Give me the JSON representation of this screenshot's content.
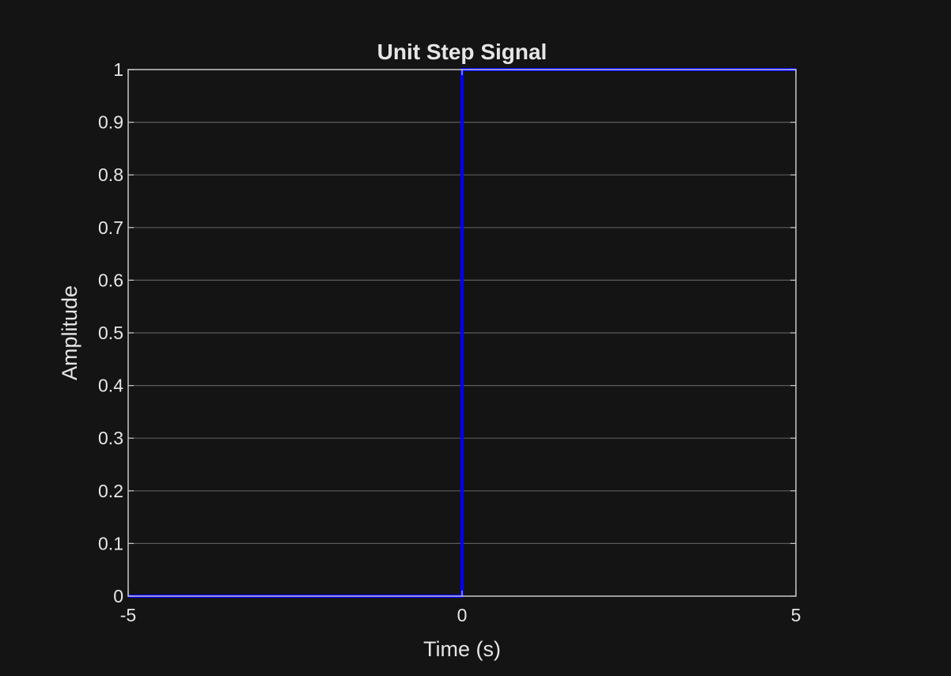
{
  "chart_data": {
    "type": "line",
    "title": "Unit Step Signal",
    "xlabel": "Time (s)",
    "ylabel": "Amplitude",
    "xlim": [
      -5,
      5
    ],
    "ylim": [
      0,
      1
    ],
    "xticks": [
      -5,
      0,
      5
    ],
    "xtick_labels": [
      "-5",
      "0",
      "5"
    ],
    "yticks": [
      0,
      0.1,
      0.2,
      0.3,
      0.4,
      0.5,
      0.6,
      0.7,
      0.8,
      0.9,
      1
    ],
    "ytick_labels": [
      "0",
      "0.1",
      "0.2",
      "0.3",
      "0.4",
      "0.5",
      "0.6",
      "0.7",
      "0.8",
      "0.9",
      "1"
    ],
    "grid": "y-only",
    "legend": "none",
    "series": [
      {
        "x": [
          -5,
          0,
          0,
          5
        ],
        "y": [
          0,
          0,
          1,
          1
        ],
        "color": "#0000ff"
      }
    ],
    "colors": {
      "background": "#141414",
      "axes_background": "#141414",
      "axes_box": "#c8c8c8",
      "grid": "#5a5a5a",
      "text": "#e6e6e6"
    }
  }
}
